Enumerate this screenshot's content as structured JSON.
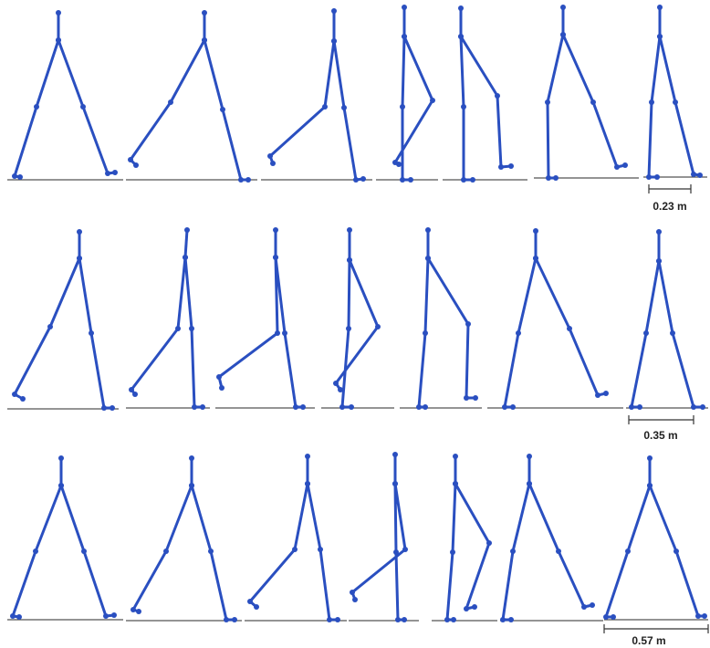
{
  "scale_bars": [
    "0.23 m",
    "0.35 m",
    "0.57 m"
  ]
}
